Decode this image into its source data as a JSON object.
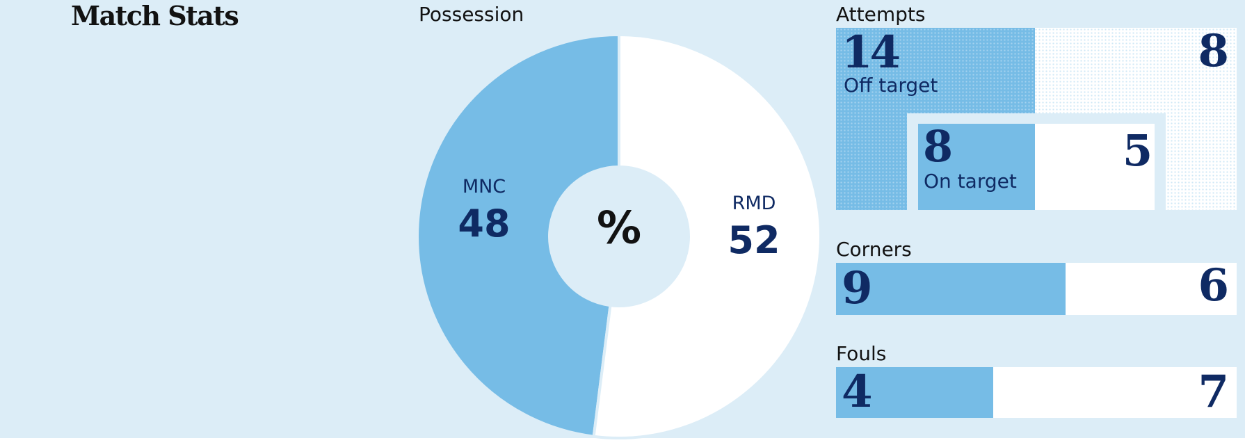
{
  "title": "Match Stats",
  "colors": {
    "home": "#76bce6",
    "away": "#ffffff",
    "ink": "#0f2a63",
    "background": "#dcedf7"
  },
  "possession": {
    "label": "Possession",
    "center_symbol": "%",
    "home": {
      "team": "MNC",
      "value": "48"
    },
    "away": {
      "team": "RMD",
      "value": "52"
    }
  },
  "attempts": {
    "label": "Attempts",
    "off_target": {
      "label": "Off target",
      "home": "14",
      "away": "8"
    },
    "on_target": {
      "label": "On target",
      "home": "8",
      "away": "5"
    }
  },
  "corners": {
    "label": "Corners",
    "home": "9",
    "away": "6"
  },
  "fouls": {
    "label": "Fouls",
    "home": "4",
    "away": "7"
  },
  "chart_data": [
    {
      "type": "pie",
      "title": "Possession",
      "categories": [
        "MNC",
        "RMD"
      ],
      "values": [
        48,
        52
      ],
      "unit": "%"
    },
    {
      "type": "bar",
      "title": "Attempts",
      "categories": [
        "Off target",
        "On target"
      ],
      "series": [
        {
          "name": "MNC",
          "values": [
            14,
            8
          ]
        },
        {
          "name": "RMD",
          "values": [
            8,
            5
          ]
        }
      ]
    },
    {
      "type": "bar",
      "title": "Corners",
      "series": [
        {
          "name": "MNC",
          "values": [
            9
          ]
        },
        {
          "name": "RMD",
          "values": [
            6
          ]
        }
      ]
    },
    {
      "type": "bar",
      "title": "Fouls",
      "series": [
        {
          "name": "MNC",
          "values": [
            4
          ]
        },
        {
          "name": "RMD",
          "values": [
            7
          ]
        }
      ]
    }
  ]
}
